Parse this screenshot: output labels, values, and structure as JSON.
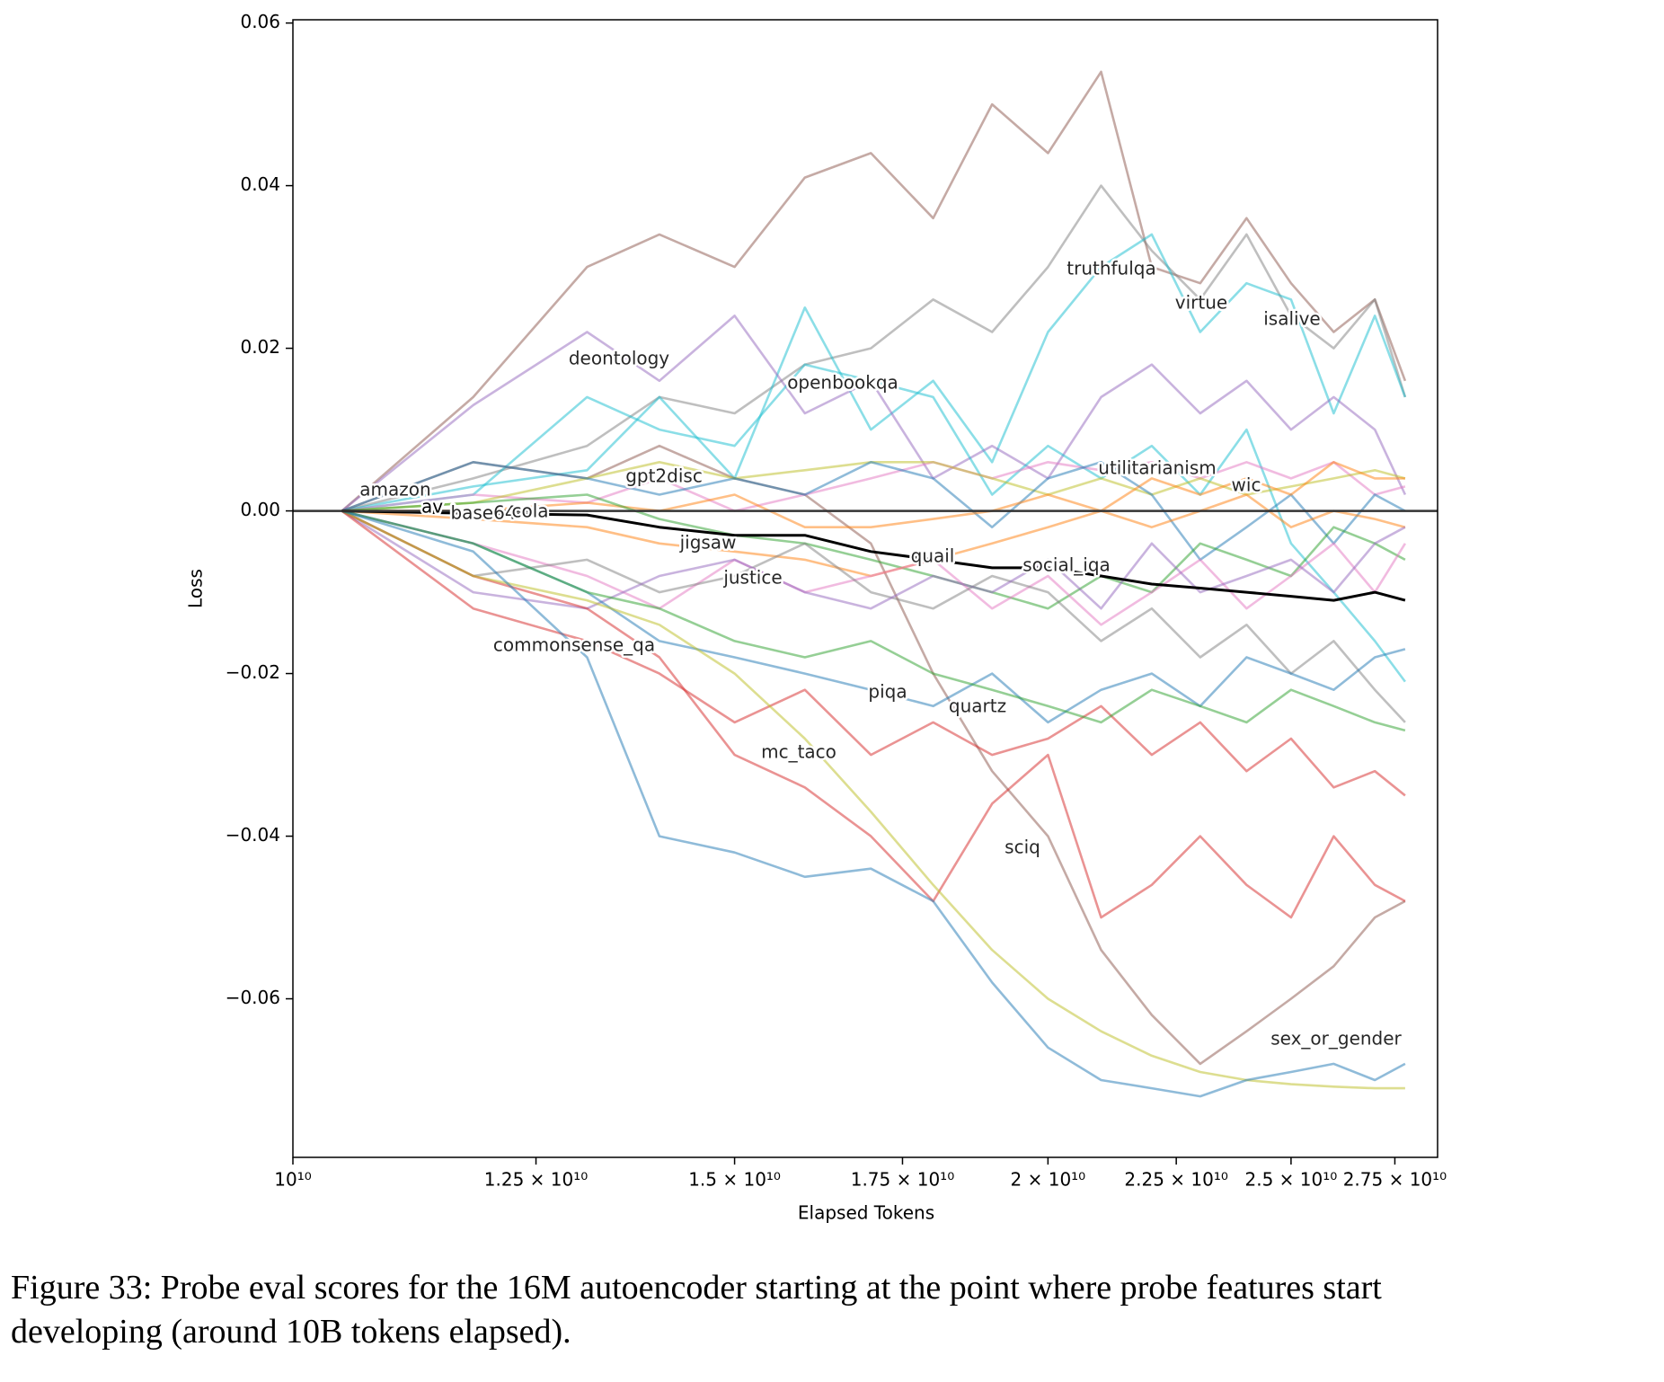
{
  "chart_data": {
    "type": "line",
    "xlabel": "Elapsed Tokens",
    "ylabel": "Loss",
    "x": [
      10460000000,
      11800000000,
      13100000000,
      14000000000,
      15000000000,
      16000000000,
      17000000000,
      18000000000,
      19000000000,
      20000000000,
      21000000000,
      22000000000,
      23000000000,
      24000000000,
      25000000000,
      26000000000,
      27000000000,
      27760000000
    ],
    "xlim": [
      10000000000,
      28600000000
    ],
    "xscale": "log",
    "xticks": [
      {
        "value": 10000000000,
        "label": "10¹⁰"
      },
      {
        "value": 12500000000,
        "label": "1.25 × 10¹⁰"
      },
      {
        "value": 15000000000,
        "label": "1.5 × 10¹⁰"
      },
      {
        "value": 17500000000,
        "label": "1.75 × 10¹⁰"
      },
      {
        "value": 20000000000,
        "label": "2 × 10¹⁰"
      },
      {
        "value": 22500000000,
        "label": "2.25 × 10¹⁰"
      },
      {
        "value": 25000000000,
        "label": "2.5 × 10¹⁰"
      },
      {
        "value": 27500000000,
        "label": "2.75 × 10¹⁰"
      }
    ],
    "ylim": [
      -0.0795,
      0.0604
    ],
    "yticks": [
      {
        "value": -0.06,
        "label": "−0.06"
      },
      {
        "value": -0.04,
        "label": "−0.04"
      },
      {
        "value": -0.02,
        "label": "−0.02"
      },
      {
        "value": 0,
        "label": "0.00"
      },
      0.02,
      0.04,
      0.06
    ],
    "series": [
      {
        "name": "truthfulqa",
        "color": "#8c564b",
        "values": [
          0,
          0.014,
          0.03,
          0.034,
          0.03,
          0.041,
          0.044,
          0.036,
          0.05,
          0.044,
          0.054,
          0.03,
          0.028,
          0.036,
          0.028,
          0.022,
          0.026,
          0.016
        ]
      },
      {
        "name": "virtue",
        "color": "#7f7f7f",
        "values": [
          0,
          0.004,
          0.008,
          0.014,
          0.012,
          0.018,
          0.02,
          0.026,
          0.022,
          0.03,
          0.04,
          0.032,
          0.026,
          0.034,
          0.024,
          0.02,
          0.026,
          0.014
        ]
      },
      {
        "name": "isalive",
        "color": "#17becf",
        "values": [
          0,
          0.003,
          0.005,
          0.014,
          0.004,
          0.025,
          0.01,
          0.016,
          0.006,
          0.022,
          0.03,
          0.034,
          0.022,
          0.028,
          0.026,
          0.012,
          0.024,
          0.014
        ]
      },
      {
        "name": "deontology",
        "color": "#9467bd",
        "values": [
          0,
          0.013,
          0.022,
          0.016,
          0.024,
          0.012,
          0.016,
          0.004,
          0.008,
          0.004,
          0.014,
          0.018,
          0.012,
          0.016,
          0.01,
          0.014,
          0.01,
          0.002
        ]
      },
      {
        "name": "openbookqa",
        "color": "#17becf",
        "values": [
          0,
          0.002,
          0.014,
          0.01,
          0.008,
          0.018,
          0.016,
          0.014,
          0.002,
          0.008,
          0.004,
          0.008,
          0.002,
          0.01,
          -0.004,
          -0.01,
          -0.016,
          -0.021
        ]
      },
      {
        "name": "gpt2disc",
        "color": "#8c564b",
        "values": [
          0,
          0.006,
          0.004,
          0.008,
          0.004,
          0.002,
          -0.004,
          -0.02,
          -0.032,
          -0.04,
          -0.054,
          -0.062,
          -0.068,
          -0.064,
          -0.06,
          -0.056,
          -0.05,
          -0.048
        ]
      },
      {
        "name": "utilitarianism",
        "color": "#e377c2",
        "values": [
          0,
          0.002,
          0.001,
          0.004,
          0.0,
          0.002,
          0.004,
          0.006,
          0.004,
          0.006,
          0.005,
          0.006,
          0.004,
          0.006,
          0.004,
          0.006,
          0.002,
          0.003
        ]
      },
      {
        "name": "wic",
        "color": "#bcbd22",
        "values": [
          0,
          0.001,
          0.004,
          0.006,
          0.004,
          0.005,
          0.006,
          0.006,
          0.004,
          0.002,
          0.004,
          0.002,
          0.004,
          0.002,
          0.003,
          0.004,
          0.005,
          0.004
        ]
      },
      {
        "name": "amazon",
        "color": "#1f77b4",
        "values": [
          0,
          0.006,
          0.004,
          0.002,
          0.004,
          0.002,
          0.006,
          0.004,
          -0.002,
          0.004,
          0.006,
          0.002,
          -0.006,
          -0.002,
          0.002,
          -0.004,
          0.002,
          0.0
        ]
      },
      {
        "name": "base64",
        "color": "#ff7f0e",
        "values": [
          0,
          0.0,
          0.001,
          0.0,
          0.002,
          -0.002,
          -0.002,
          -0.001,
          0.0,
          0.002,
          0.0,
          0.004,
          0.002,
          0.004,
          0.002,
          0.006,
          0.004,
          0.004
        ]
      },
      {
        "name": "cola",
        "color": "#2ca02c",
        "values": [
          0,
          0.001,
          0.002,
          -0.001,
          -0.003,
          -0.004,
          -0.006,
          -0.008,
          -0.01,
          -0.012,
          -0.008,
          -0.01,
          -0.004,
          -0.006,
          -0.008,
          -0.002,
          -0.004,
          -0.006
        ]
      },
      {
        "name": "quail",
        "color": "#ff7f0e",
        "values": [
          0,
          -0.001,
          -0.002,
          -0.004,
          -0.005,
          -0.006,
          -0.008,
          -0.006,
          -0.004,
          -0.002,
          0.0,
          -0.002,
          0.0,
          0.002,
          -0.002,
          0.0,
          -0.001,
          -0.002
        ]
      },
      {
        "name": "jigsaw",
        "color": "#e377c2",
        "values": [
          0,
          -0.004,
          -0.008,
          -0.012,
          -0.006,
          -0.01,
          -0.008,
          -0.006,
          -0.012,
          -0.008,
          -0.014,
          -0.01,
          -0.006,
          -0.012,
          -0.008,
          -0.004,
          -0.01,
          -0.004
        ]
      },
      {
        "name": "justice",
        "color": "#7f7f7f",
        "values": [
          0,
          -0.008,
          -0.006,
          -0.01,
          -0.008,
          -0.004,
          -0.01,
          -0.012,
          -0.008,
          -0.01,
          -0.016,
          -0.012,
          -0.018,
          -0.014,
          -0.02,
          -0.016,
          -0.022,
          -0.026
        ]
      },
      {
        "name": "social_iqa",
        "color": "#9467bd",
        "values": [
          0,
          -0.01,
          -0.012,
          -0.008,
          -0.006,
          -0.01,
          -0.012,
          -0.008,
          -0.01,
          -0.006,
          -0.012,
          -0.004,
          -0.01,
          -0.008,
          -0.006,
          -0.01,
          -0.004,
          -0.002
        ]
      },
      {
        "name": "commonsense_qa",
        "color": "#d62728",
        "values": [
          0,
          -0.012,
          -0.016,
          -0.02,
          -0.026,
          -0.022,
          -0.03,
          -0.026,
          -0.03,
          -0.028,
          -0.024,
          -0.03,
          -0.026,
          -0.032,
          -0.028,
          -0.034,
          -0.032,
          -0.035
        ]
      },
      {
        "name": "sciq",
        "color": "#d62728",
        "values": [
          0,
          -0.008,
          -0.012,
          -0.018,
          -0.03,
          -0.034,
          -0.04,
          -0.048,
          -0.036,
          -0.03,
          -0.05,
          -0.046,
          -0.04,
          -0.046,
          -0.05,
          -0.04,
          -0.046,
          -0.048
        ]
      },
      {
        "name": "piqa",
        "color": "#1f77b4",
        "values": [
          0,
          -0.004,
          -0.01,
          -0.016,
          -0.018,
          -0.02,
          -0.022,
          -0.024,
          -0.02,
          -0.026,
          -0.022,
          -0.02,
          -0.024,
          -0.018,
          -0.02,
          -0.022,
          -0.018,
          -0.017
        ]
      },
      {
        "name": "quartz",
        "color": "#2ca02c",
        "values": [
          0,
          -0.004,
          -0.01,
          -0.012,
          -0.016,
          -0.018,
          -0.016,
          -0.02,
          -0.022,
          -0.024,
          -0.026,
          -0.022,
          -0.024,
          -0.026,
          -0.022,
          -0.024,
          -0.026,
          -0.027
        ]
      },
      {
        "name": "mc_taco",
        "color": "#bcbd22",
        "values": [
          0,
          -0.008,
          -0.011,
          -0.014,
          -0.02,
          -0.028,
          -0.037,
          -0.046,
          -0.054,
          -0.06,
          -0.064,
          -0.067,
          -0.069,
          -0.07,
          -0.0705,
          -0.0708,
          -0.071,
          -0.071
        ]
      },
      {
        "name": "sex_or_gender",
        "color": "#1f77b4",
        "values": [
          0,
          -0.005,
          -0.018,
          -0.04,
          -0.042,
          -0.045,
          -0.044,
          -0.048,
          -0.058,
          -0.066,
          -0.07,
          -0.071,
          -0.072,
          -0.07,
          -0.069,
          -0.068,
          -0.07,
          -0.068
        ]
      },
      {
        "name": "av",
        "color": "#000000",
        "values": [
          0,
          -0.0003,
          -0.0005,
          -0.002,
          -0.003,
          -0.003,
          -0.005,
          -0.006,
          -0.007,
          -0.007,
          -0.008,
          -0.009,
          -0.0095,
          -0.01,
          -0.0105,
          -0.011,
          -0.01,
          -0.011
        ]
      }
    ]
  },
  "caption": [
    "Figure 33: Probe eval scores for the 16M autoencoder starting at the point where probe features start",
    "developing (around 10B tokens elapsed)."
  ]
}
